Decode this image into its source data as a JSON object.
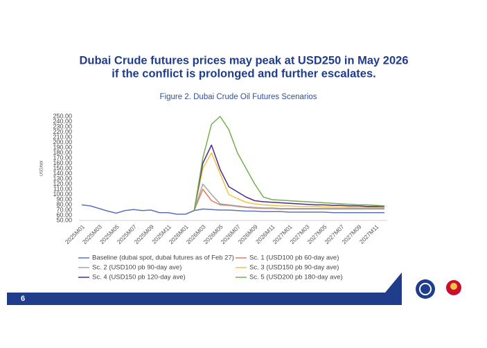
{
  "chart_data": {
    "type": "line",
    "title_lines": [
      "Dubai Crude futures prices may peak at USD250 in May 2026",
      "if the conflict is prolonged and further escalates."
    ],
    "subtitle": "Figure 2. Dubai Crude Oil Futures Scenarios",
    "y_label": "USD/bbl",
    "categories": [
      "2025M01",
      null,
      "2025M03",
      null,
      "2025M05",
      null,
      "2025M07",
      null,
      "2025M09",
      null,
      "2025M11",
      null,
      "2026M01",
      null,
      "2026M03",
      null,
      "2026M05",
      null,
      "2026M07",
      null,
      "2026M09",
      null,
      "2026M11",
      null,
      "2027M01",
      null,
      "2027M03",
      null,
      "2027M05",
      null,
      "2027M07",
      null,
      "2027M09",
      null,
      "2027M11",
      null
    ],
    "ylim": [
      50,
      250
    ],
    "yticks": [
      {
        "value": 50,
        "label": "50.00"
      },
      {
        "value": 60,
        "label": "60.00"
      },
      {
        "value": 70,
        "label": "70.00"
      },
      {
        "value": 80,
        "label": "80.00"
      },
      {
        "value": 90,
        "label": "90.00"
      },
      {
        "value": 100,
        "label": "100.00"
      },
      {
        "value": 110,
        "label": "110.00"
      },
      {
        "value": 120,
        "label": "120.00"
      },
      {
        "value": 130,
        "label": "130.00"
      },
      {
        "value": 140,
        "label": "140.00"
      },
      {
        "value": 150,
        "label": "150.00"
      },
      {
        "value": 160,
        "label": "160.00"
      },
      {
        "value": 170,
        "label": "170.00"
      },
      {
        "value": 180,
        "label": "180.00"
      },
      {
        "value": 190,
        "label": "190.00"
      },
      {
        "value": 200,
        "label": "200.00"
      },
      {
        "value": 210,
        "label": "210.00"
      },
      {
        "value": 220,
        "label": "220.00"
      },
      {
        "value": 230,
        "label": "230.00"
      },
      {
        "value": 240,
        "label": "240.00"
      },
      {
        "value": 250,
        "label": "250.00"
      }
    ],
    "series": [
      {
        "name": "Baseline (dubai spot, dubai futures as of Feb 27)",
        "color": "#5b72b8",
        "values": [
          80,
          78,
          73,
          68,
          64,
          69,
          71,
          69,
          70,
          65,
          65,
          62,
          62,
          69,
          72,
          71,
          70,
          70,
          69,
          68,
          68,
          67,
          67,
          67,
          66,
          66,
          66,
          66,
          66,
          65,
          65,
          65,
          65,
          65,
          65,
          65
        ]
      },
      {
        "name": "Sc. 1 (USD100 pb 60-day ave)",
        "color": "#e07a5a",
        "values": [
          null,
          null,
          null,
          null,
          null,
          null,
          null,
          null,
          null,
          null,
          null,
          null,
          null,
          69,
          110,
          88,
          80,
          79,
          77,
          75,
          74,
          73,
          73,
          72,
          72,
          72,
          72,
          72,
          72,
          72,
          72,
          72,
          72,
          72,
          72,
          72
        ]
      },
      {
        "name": "Sc. 2 (USD100 pb 90-day ave)",
        "color": "#a5a5a5",
        "values": [
          null,
          null,
          null,
          null,
          null,
          null,
          null,
          null,
          null,
          null,
          null,
          null,
          null,
          69,
          120,
          100,
          82,
          80,
          78,
          76,
          75,
          74,
          74,
          73,
          73,
          73,
          73,
          73,
          73,
          73,
          73,
          73,
          73,
          73,
          73,
          73
        ]
      },
      {
        "name": "Sc. 3 (USD150 pb 90-day ave)",
        "color": "#f5c242",
        "values": [
          null,
          null,
          null,
          null,
          null,
          null,
          null,
          null,
          null,
          null,
          null,
          null,
          null,
          69,
          150,
          180,
          140,
          100,
          92,
          85,
          82,
          80,
          79,
          78,
          78,
          77,
          77,
          77,
          76,
          76,
          76,
          75,
          75,
          75,
          75,
          75
        ]
      },
      {
        "name": "Sc. 4 (USD150 pb 120-day ave)",
        "color": "#4b2c8c",
        "values": [
          null,
          null,
          null,
          null,
          null,
          null,
          null,
          null,
          null,
          null,
          null,
          null,
          null,
          69,
          160,
          195,
          148,
          115,
          105,
          95,
          88,
          86,
          85,
          84,
          83,
          82,
          81,
          80,
          80,
          79,
          79,
          78,
          78,
          77,
          77,
          77
        ]
      },
      {
        "name": "Sc. 5 (USD200 pb 180-day ave)",
        "color": "#74ad4e",
        "values": [
          null,
          null,
          null,
          null,
          null,
          null,
          null,
          null,
          null,
          null,
          null,
          null,
          null,
          69,
          170,
          235,
          250,
          225,
          180,
          150,
          120,
          95,
          90,
          89,
          88,
          87,
          86,
          85,
          84,
          83,
          82,
          81,
          80,
          80,
          79,
          78
        ]
      }
    ]
  },
  "page_number": "6"
}
